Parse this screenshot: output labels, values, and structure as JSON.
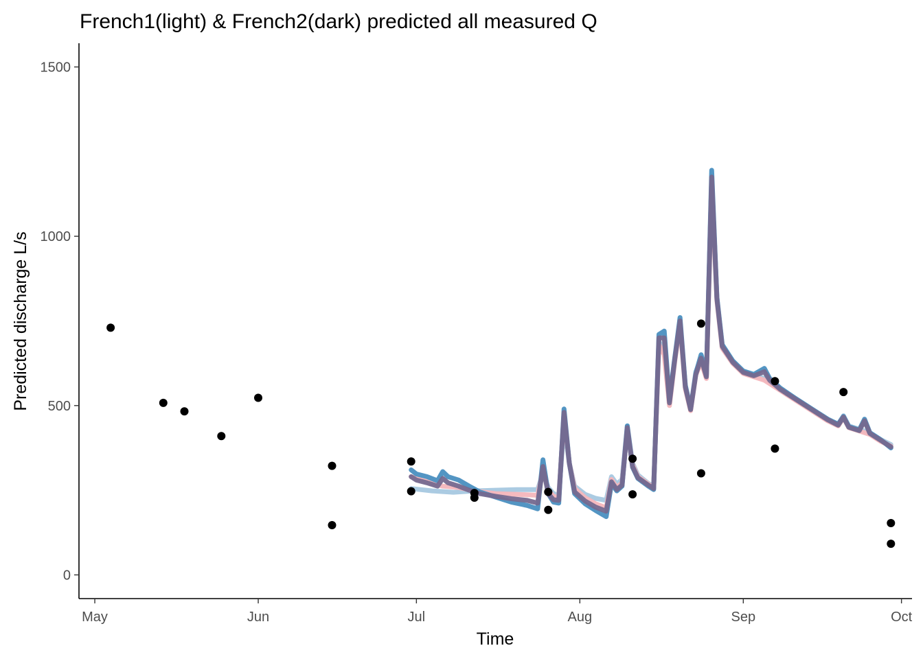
{
  "chart_data": {
    "type": "line",
    "title": "French1(light) & French2(dark) predicted all measured Q",
    "xlabel": "Time",
    "ylabel": "Predicted discharge L/s",
    "xlim": [
      "2019-04-28",
      "2019-10-03"
    ],
    "ylim": [
      -70,
      1570
    ],
    "x_ticks": [
      {
        "label": "May",
        "date": "2019-05-01"
      },
      {
        "label": "Jun",
        "date": "2019-06-01"
      },
      {
        "label": "Jul",
        "date": "2019-07-01"
      },
      {
        "label": "Aug",
        "date": "2019-08-01"
      },
      {
        "label": "Sep",
        "date": "2019-09-01"
      },
      {
        "label": "Oct",
        "date": "2019-10-01"
      }
    ],
    "y_ticks": [
      0,
      500,
      1000,
      1500
    ],
    "grid": false,
    "legend": "none",
    "series": [
      {
        "color": "#a6c8e0",
        "opacity": 0.95,
        "width": 7,
        "points": [
          [
            "2019-06-30",
            255
          ],
          [
            "2019-07-04",
            248
          ],
          [
            "2019-07-08",
            244
          ],
          [
            "2019-07-12",
            248
          ],
          [
            "2019-07-16",
            250
          ],
          [
            "2019-07-20",
            252
          ],
          [
            "2019-07-24",
            252
          ],
          [
            "2019-07-25",
            300
          ],
          [
            "2019-07-26",
            258
          ],
          [
            "2019-07-27",
            240
          ],
          [
            "2019-07-28",
            235
          ],
          [
            "2019-07-29",
            440
          ],
          [
            "2019-07-30",
            330
          ],
          [
            "2019-07-31",
            262
          ],
          [
            "2019-08-02",
            238
          ],
          [
            "2019-08-04",
            226
          ],
          [
            "2019-08-06",
            220
          ],
          [
            "2019-08-07",
            290
          ],
          [
            "2019-08-08",
            268
          ],
          [
            "2019-08-09",
            282
          ],
          [
            "2019-08-10",
            440
          ],
          [
            "2019-08-11",
            330
          ],
          [
            "2019-08-12",
            295
          ],
          [
            "2019-08-14",
            270
          ],
          [
            "2019-08-15",
            262
          ],
          [
            "2019-08-16",
            690
          ],
          [
            "2019-08-17",
            660
          ],
          [
            "2019-08-18",
            520
          ],
          [
            "2019-08-19",
            640
          ],
          [
            "2019-08-20",
            740
          ],
          [
            "2019-08-21",
            560
          ],
          [
            "2019-08-22",
            490
          ],
          [
            "2019-08-23",
            600
          ],
          [
            "2019-08-24",
            640
          ],
          [
            "2019-08-25",
            590
          ],
          [
            "2019-08-26",
            1170
          ],
          [
            "2019-08-27",
            820
          ],
          [
            "2019-08-28",
            680
          ],
          [
            "2019-08-30",
            630
          ],
          [
            "2019-09-01",
            600
          ],
          [
            "2019-09-03",
            590
          ],
          [
            "2019-09-05",
            580
          ],
          [
            "2019-09-08",
            550
          ],
          [
            "2019-09-11",
            520
          ],
          [
            "2019-09-14",
            490
          ],
          [
            "2019-09-17",
            460
          ],
          [
            "2019-09-19",
            445
          ],
          [
            "2019-09-20",
            470
          ],
          [
            "2019-09-21",
            440
          ],
          [
            "2019-09-23",
            430
          ],
          [
            "2019-09-25",
            420
          ],
          [
            "2019-09-27",
            400
          ],
          [
            "2019-09-29",
            385
          ]
        ]
      },
      {
        "color": "#f4b6bc",
        "opacity": 0.95,
        "width": 7,
        "points": [
          [
            "2019-06-30",
            290
          ],
          [
            "2019-07-03",
            275
          ],
          [
            "2019-07-06",
            262
          ],
          [
            "2019-07-09",
            258
          ],
          [
            "2019-07-12",
            248
          ],
          [
            "2019-07-16",
            240
          ],
          [
            "2019-07-20",
            238
          ],
          [
            "2019-07-24",
            235
          ],
          [
            "2019-07-25",
            310
          ],
          [
            "2019-07-26",
            250
          ],
          [
            "2019-07-27",
            232
          ],
          [
            "2019-07-28",
            228
          ],
          [
            "2019-07-29",
            470
          ],
          [
            "2019-07-30",
            330
          ],
          [
            "2019-07-31",
            255
          ],
          [
            "2019-08-02",
            228
          ],
          [
            "2019-08-04",
            210
          ],
          [
            "2019-08-06",
            198
          ],
          [
            "2019-08-07",
            282
          ],
          [
            "2019-08-08",
            258
          ],
          [
            "2019-08-09",
            272
          ],
          [
            "2019-08-10",
            430
          ],
          [
            "2019-08-11",
            325
          ],
          [
            "2019-08-12",
            290
          ],
          [
            "2019-08-14",
            268
          ],
          [
            "2019-08-15",
            258
          ],
          [
            "2019-08-16",
            680
          ],
          [
            "2019-08-17",
            650
          ],
          [
            "2019-08-18",
            500
          ],
          [
            "2019-08-19",
            630
          ],
          [
            "2019-08-20",
            740
          ],
          [
            "2019-08-21",
            550
          ],
          [
            "2019-08-22",
            485
          ],
          [
            "2019-08-23",
            590
          ],
          [
            "2019-08-24",
            630
          ],
          [
            "2019-08-25",
            580
          ],
          [
            "2019-08-26",
            1150
          ],
          [
            "2019-08-27",
            810
          ],
          [
            "2019-08-28",
            670
          ],
          [
            "2019-08-30",
            625
          ],
          [
            "2019-09-01",
            595
          ],
          [
            "2019-09-03",
            585
          ],
          [
            "2019-09-05",
            575
          ],
          [
            "2019-09-08",
            545
          ],
          [
            "2019-09-11",
            515
          ],
          [
            "2019-09-14",
            485
          ],
          [
            "2019-09-17",
            455
          ],
          [
            "2019-09-19",
            440
          ],
          [
            "2019-09-20",
            465
          ],
          [
            "2019-09-21",
            435
          ],
          [
            "2019-09-23",
            425
          ],
          [
            "2019-09-25",
            415
          ],
          [
            "2019-09-27",
            395
          ],
          [
            "2019-09-29",
            380
          ]
        ]
      },
      {
        "color": "#4a8fc0",
        "opacity": 0.95,
        "width": 7,
        "points": [
          [
            "2019-06-30",
            310
          ],
          [
            "2019-07-01",
            298
          ],
          [
            "2019-07-03",
            290
          ],
          [
            "2019-07-05",
            278
          ],
          [
            "2019-07-06",
            305
          ],
          [
            "2019-07-07",
            290
          ],
          [
            "2019-07-09",
            280
          ],
          [
            "2019-07-11",
            262
          ],
          [
            "2019-07-13",
            245
          ],
          [
            "2019-07-16",
            230
          ],
          [
            "2019-07-19",
            215
          ],
          [
            "2019-07-22",
            205
          ],
          [
            "2019-07-24",
            195
          ],
          [
            "2019-07-25",
            340
          ],
          [
            "2019-07-26",
            240
          ],
          [
            "2019-07-27",
            215
          ],
          [
            "2019-07-28",
            212
          ],
          [
            "2019-07-29",
            490
          ],
          [
            "2019-07-30",
            330
          ],
          [
            "2019-07-31",
            240
          ],
          [
            "2019-08-02",
            210
          ],
          [
            "2019-08-04",
            190
          ],
          [
            "2019-08-06",
            172
          ],
          [
            "2019-08-07",
            270
          ],
          [
            "2019-08-08",
            248
          ],
          [
            "2019-08-09",
            262
          ],
          [
            "2019-08-10",
            440
          ],
          [
            "2019-08-11",
            318
          ],
          [
            "2019-08-12",
            285
          ],
          [
            "2019-08-14",
            262
          ],
          [
            "2019-08-15",
            252
          ],
          [
            "2019-08-16",
            710
          ],
          [
            "2019-08-17",
            720
          ],
          [
            "2019-08-18",
            515
          ],
          [
            "2019-08-19",
            640
          ],
          [
            "2019-08-20",
            760
          ],
          [
            "2019-08-21",
            560
          ],
          [
            "2019-08-22",
            490
          ],
          [
            "2019-08-23",
            595
          ],
          [
            "2019-08-24",
            650
          ],
          [
            "2019-08-25",
            590
          ],
          [
            "2019-08-26",
            1195
          ],
          [
            "2019-08-27",
            820
          ],
          [
            "2019-08-28",
            680
          ],
          [
            "2019-08-30",
            632
          ],
          [
            "2019-09-01",
            602
          ],
          [
            "2019-09-03",
            592
          ],
          [
            "2019-09-05",
            610
          ],
          [
            "2019-09-06",
            580
          ],
          [
            "2019-09-08",
            552
          ],
          [
            "2019-09-11",
            520
          ],
          [
            "2019-09-14",
            490
          ],
          [
            "2019-09-17",
            460
          ],
          [
            "2019-09-19",
            445
          ],
          [
            "2019-09-20",
            468
          ],
          [
            "2019-09-21",
            438
          ],
          [
            "2019-09-23",
            428
          ],
          [
            "2019-09-24",
            460
          ],
          [
            "2019-09-25",
            420
          ],
          [
            "2019-09-27",
            400
          ],
          [
            "2019-09-29",
            375
          ]
        ]
      },
      {
        "color": "#75698f",
        "opacity": 0.95,
        "width": 7,
        "points": [
          [
            "2019-06-30",
            290
          ],
          [
            "2019-07-01",
            280
          ],
          [
            "2019-07-03",
            272
          ],
          [
            "2019-07-05",
            262
          ],
          [
            "2019-07-06",
            285
          ],
          [
            "2019-07-07",
            272
          ],
          [
            "2019-07-09",
            262
          ],
          [
            "2019-07-11",
            250
          ],
          [
            "2019-07-13",
            240
          ],
          [
            "2019-07-16",
            232
          ],
          [
            "2019-07-19",
            225
          ],
          [
            "2019-07-22",
            220
          ],
          [
            "2019-07-24",
            212
          ],
          [
            "2019-07-25",
            320
          ],
          [
            "2019-07-26",
            240
          ],
          [
            "2019-07-27",
            222
          ],
          [
            "2019-07-28",
            220
          ],
          [
            "2019-07-29",
            480
          ],
          [
            "2019-07-30",
            330
          ],
          [
            "2019-07-31",
            245
          ],
          [
            "2019-08-02",
            218
          ],
          [
            "2019-08-04",
            200
          ],
          [
            "2019-08-06",
            188
          ],
          [
            "2019-08-07",
            275
          ],
          [
            "2019-08-08",
            252
          ],
          [
            "2019-08-09",
            265
          ],
          [
            "2019-08-10",
            435
          ],
          [
            "2019-08-11",
            320
          ],
          [
            "2019-08-12",
            287
          ],
          [
            "2019-08-14",
            265
          ],
          [
            "2019-08-15",
            255
          ],
          [
            "2019-08-16",
            700
          ],
          [
            "2019-08-17",
            700
          ],
          [
            "2019-08-18",
            508
          ],
          [
            "2019-08-19",
            635
          ],
          [
            "2019-08-20",
            750
          ],
          [
            "2019-08-21",
            555
          ],
          [
            "2019-08-22",
            488
          ],
          [
            "2019-08-23",
            592
          ],
          [
            "2019-08-24",
            640
          ],
          [
            "2019-08-25",
            585
          ],
          [
            "2019-08-26",
            1175
          ],
          [
            "2019-08-27",
            815
          ],
          [
            "2019-08-28",
            675
          ],
          [
            "2019-08-30",
            628
          ],
          [
            "2019-09-01",
            598
          ],
          [
            "2019-09-03",
            588
          ],
          [
            "2019-09-05",
            600
          ],
          [
            "2019-09-06",
            575
          ],
          [
            "2019-09-08",
            548
          ],
          [
            "2019-09-11",
            518
          ],
          [
            "2019-09-14",
            488
          ],
          [
            "2019-09-17",
            458
          ],
          [
            "2019-09-19",
            442
          ],
          [
            "2019-09-20",
            466
          ],
          [
            "2019-09-21",
            436
          ],
          [
            "2019-09-23",
            426
          ],
          [
            "2019-09-24",
            455
          ],
          [
            "2019-09-25",
            418
          ],
          [
            "2019-09-27",
            398
          ],
          [
            "2019-09-29",
            378
          ]
        ]
      }
    ],
    "measured_points": {
      "color": "#000000",
      "points": [
        [
          "2019-05-04",
          730
        ],
        [
          "2019-05-14",
          508
        ],
        [
          "2019-05-18",
          483
        ],
        [
          "2019-05-25",
          410
        ],
        [
          "2019-06-01",
          523
        ],
        [
          "2019-06-15",
          322
        ],
        [
          "2019-06-15",
          147
        ],
        [
          "2019-06-30",
          335
        ],
        [
          "2019-06-30",
          247
        ],
        [
          "2019-07-12",
          242
        ],
        [
          "2019-07-12",
          228
        ],
        [
          "2019-07-26",
          245
        ],
        [
          "2019-07-26",
          192
        ],
        [
          "2019-08-11",
          343
        ],
        [
          "2019-08-11",
          238
        ],
        [
          "2019-08-24",
          742
        ],
        [
          "2019-08-24",
          300
        ],
        [
          "2019-09-07",
          572
        ],
        [
          "2019-09-07",
          373
        ],
        [
          "2019-09-20",
          540
        ],
        [
          "2019-09-29",
          153
        ],
        [
          "2019-09-29",
          92
        ]
      ]
    }
  }
}
